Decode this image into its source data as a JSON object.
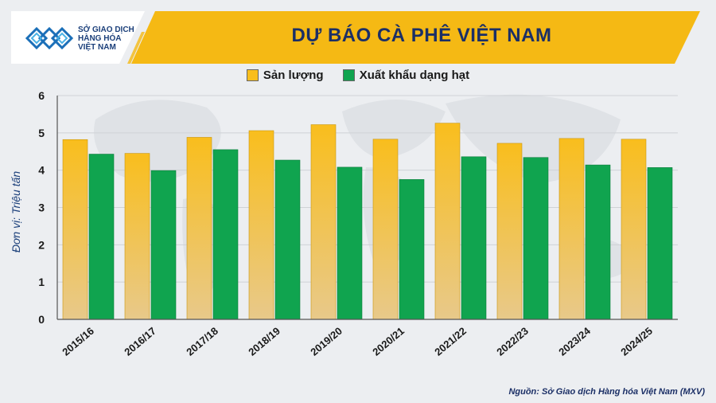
{
  "header": {
    "title": "DỰ BÁO CÀ PHÊ VIỆT NAM",
    "logo_text": "SỞ GIAO DỊCH\nHÀNG HÓA\nVIỆT NAM"
  },
  "footer": {
    "source": "Nguồn: Sở Giao dịch Hàng hóa Việt Nam (MXV)"
  },
  "colors": {
    "header_gold": "#f5b914",
    "series_production": "#f9be1d",
    "series_export": "#10a44f",
    "logo_blue": "#1b6fb8"
  },
  "chart_data": {
    "type": "bar",
    "title": "DỰ BÁO CÀ PHÊ VIỆT NAM",
    "ylabel": "Đơn vị: Triệu tấn",
    "xlabel": "",
    "ylim": [
      0,
      6
    ],
    "yticks": [
      0,
      1,
      2,
      3,
      4,
      5,
      6
    ],
    "grid": true,
    "legend_position": "top-center",
    "categories": [
      "2015/16",
      "2016/17",
      "2017/18",
      "2018/19",
      "2019/20",
      "2020/21",
      "2021/22",
      "2022/23",
      "2023/24",
      "2024/25"
    ],
    "series": [
      {
        "name": "Sản lượng",
        "values": [
          4.82,
          4.45,
          4.88,
          5.06,
          5.22,
          4.83,
          5.26,
          4.72,
          4.85,
          4.83
        ]
      },
      {
        "name": "Xuất khẩu dạng hạt",
        "values": [
          4.43,
          3.99,
          4.55,
          4.27,
          4.08,
          3.75,
          4.36,
          4.34,
          4.14,
          4.07
        ]
      }
    ]
  }
}
